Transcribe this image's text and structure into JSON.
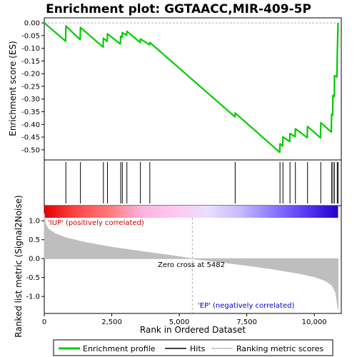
{
  "chart_data": {
    "type": "line",
    "title": "Enrichment plot: GGTAACC,MIR-409-5P",
    "xlabel": "Rank in Ordered Dataset",
    "xlim": [
      0,
      11000
    ],
    "x_ticks": [
      0,
      2500,
      5000,
      7500,
      10000
    ],
    "x_tick_labels": [
      "0",
      "2,500",
      "5,000",
      "7,500",
      "10,000"
    ],
    "panels": {
      "enrichment": {
        "ylabel": "Enrichment score (ES)",
        "ylim": [
          -0.54,
          0.02
        ],
        "y_ticks": [
          0.0,
          -0.05,
          -0.1,
          -0.15,
          -0.2,
          -0.25,
          -0.3,
          -0.35,
          -0.4,
          -0.45,
          -0.5
        ],
        "y_tick_labels": [
          "0.00",
          "-0.05",
          "-0.10",
          "-0.15",
          "-0.20",
          "-0.25",
          "-0.30",
          "-0.35",
          "-0.40",
          "-0.45",
          "-0.50"
        ],
        "series": [
          {
            "name": "Enrichment profile",
            "color": "#00cc00",
            "x": [
              0,
              790,
              800,
              1330,
              1340,
              2180,
              2190,
              2330,
              2340,
              2820,
              2830,
              2880,
              2890,
              3050,
              3060,
              3550,
              3560,
              3900,
              3910,
              7060,
              7070,
              8720,
              8730,
              8830,
              8840,
              9090,
              9100,
              9290,
              9300,
              9740,
              9750,
              10230,
              10240,
              10630,
              10640,
              10680,
              10690,
              10740,
              10750,
              10840,
              10850,
              10880
            ],
            "y": [
              0.0,
              -0.072,
              -0.012,
              -0.066,
              -0.018,
              -0.095,
              -0.06,
              -0.073,
              -0.043,
              -0.083,
              -0.053,
              -0.056,
              -0.038,
              -0.049,
              -0.033,
              -0.077,
              -0.063,
              -0.086,
              -0.077,
              -0.37,
              -0.355,
              -0.51,
              -0.476,
              -0.485,
              -0.449,
              -0.468,
              -0.436,
              -0.448,
              -0.417,
              -0.452,
              -0.408,
              -0.453,
              -0.393,
              -0.43,
              -0.36,
              -0.363,
              -0.286,
              -0.29,
              -0.208,
              -0.213,
              -0.128,
              0.0
            ]
          }
        ]
      },
      "hits": {
        "series_name": "Hits",
        "positions": [
          800,
          1340,
          2190,
          2340,
          2830,
          2890,
          3060,
          3560,
          3910,
          7070,
          8730,
          8840,
          9100,
          9300,
          9750,
          10240,
          10640,
          10690,
          10750,
          10850,
          10880
        ]
      },
      "colorbar": {
        "gradient": [
          "#e30000",
          "#ff4848",
          "#ff7a7a",
          "#ffb2e0",
          "#ffc8f0",
          "#e8e0ff",
          "#c8b8ff",
          "#8a7aff",
          "#5a3af0",
          "#2200d0"
        ],
        "label_positive": "'IUP' (positively correlated)",
        "label_negative": "'EP' (negatively correlated)",
        "color_positive": "#cc0000",
        "color_negative": "#0000cc"
      },
      "ranked_metric": {
        "series_name": "Ranking metric scores",
        "ylabel": "Ranked list metric (Signal2Noise)",
        "ylim": [
          -1.45,
          1.4
        ],
        "y_ticks": [
          1.0,
          0.5,
          0.0,
          -0.5,
          -1.0
        ],
        "y_tick_labels": [
          "1.0",
          "0.5",
          "0.0",
          "-0.5",
          "-1.0"
        ],
        "fill_color": "#bebebe",
        "x": [
          0,
          40,
          150,
          400,
          800,
          1500,
          2500,
          3500,
          4500,
          5482,
          6500,
          7500,
          8500,
          9500,
          10000,
          10400,
          10650,
          10800,
          10880
        ],
        "y": [
          1.2,
          0.92,
          0.78,
          0.66,
          0.55,
          0.43,
          0.3,
          0.2,
          0.1,
          0.0,
          -0.09,
          -0.18,
          -0.28,
          -0.4,
          -0.48,
          -0.58,
          -0.7,
          -0.9,
          -1.35
        ],
        "zero_cross_label": "Zero cross at 5482",
        "zero_cross": 5482
      }
    },
    "legend": {
      "placement": "bottom",
      "entries": [
        {
          "label": "Enrichment profile",
          "color": "#00cc00",
          "style": "line-thick"
        },
        {
          "label": "Hits",
          "color": "#000000",
          "style": "line"
        },
        {
          "label": "Ranking metric scores",
          "color": "#bebebe",
          "style": "line"
        }
      ]
    }
  }
}
